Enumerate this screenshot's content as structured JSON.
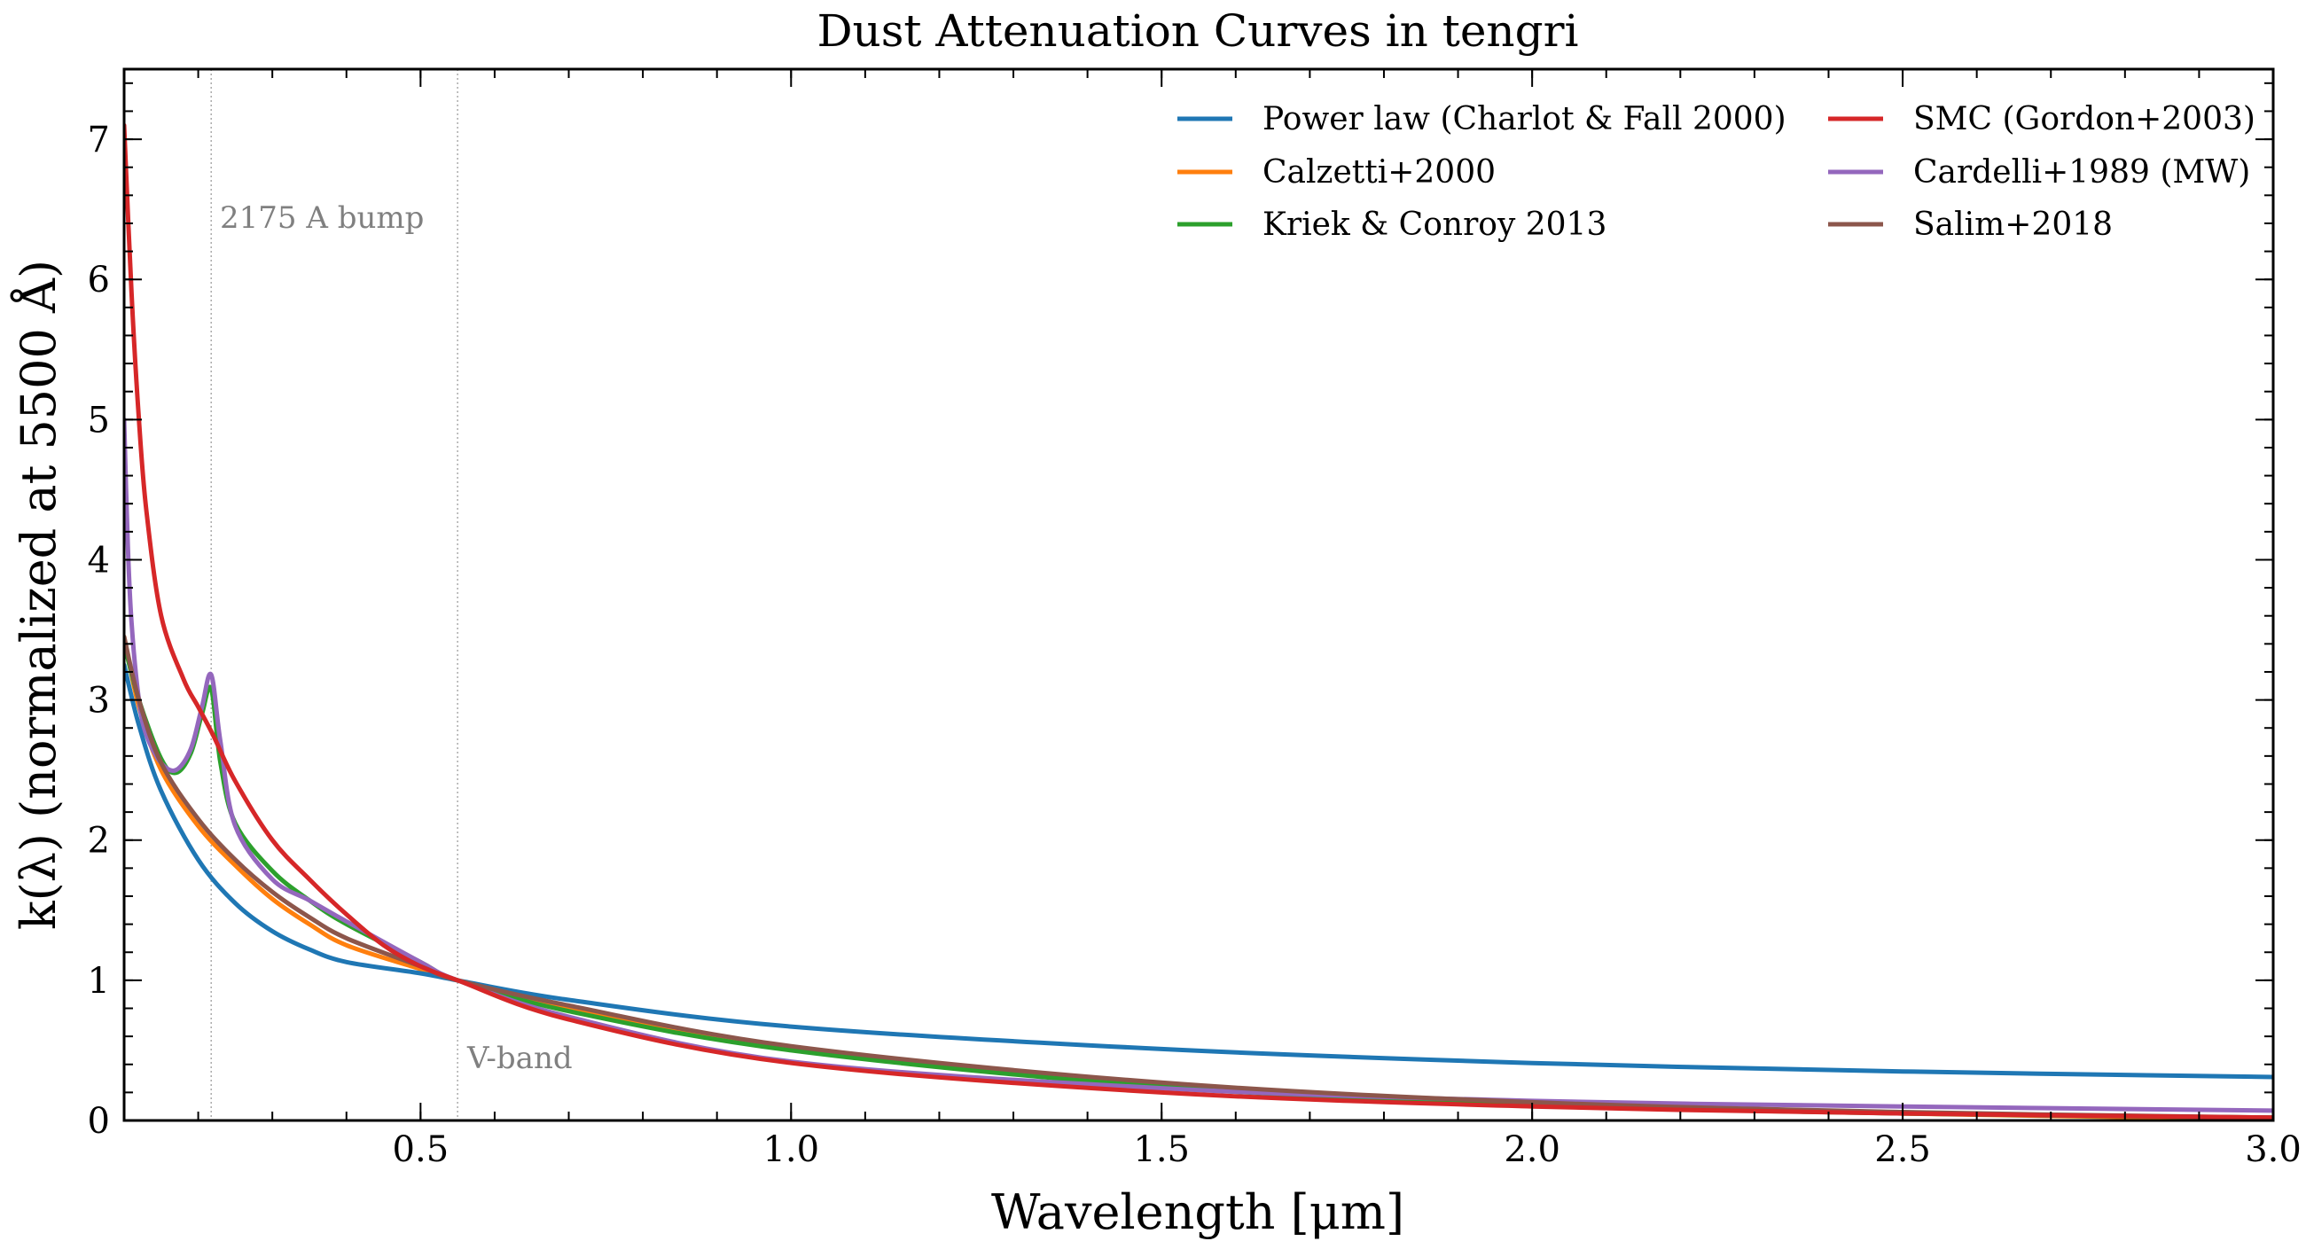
{
  "chart_data": {
    "type": "line",
    "title": "Dust Attenuation Curves in tengri",
    "xlabel": "Wavelength [μm]",
    "ylabel": "k(λ) (normalized at 5500 Å)",
    "xlim": [
      0.1,
      3.0
    ],
    "ylim": [
      0,
      7.5
    ],
    "x_ticks": [
      0.5,
      1.0,
      1.5,
      2.0,
      2.5,
      3.0
    ],
    "x_tick_labels": [
      "0.5",
      "1.0",
      "1.5",
      "2.0",
      "2.5",
      "3.0"
    ],
    "y_ticks": [
      0,
      1,
      2,
      3,
      4,
      5,
      6,
      7
    ],
    "y_tick_labels": [
      "0",
      "1",
      "2",
      "3",
      "4",
      "5",
      "6",
      "7"
    ],
    "grid": false,
    "legend_position": "top-right",
    "annotations": [
      {
        "text": "2175 A bump",
        "x": 0.2175
      },
      {
        "text": "V-band",
        "x": 0.55
      }
    ],
    "series": [
      {
        "name": "Power law (Charlot & Fall 2000)",
        "color": "#1f77b4",
        "x": [
          0.1,
          0.12,
          0.15,
          0.2,
          0.25,
          0.3,
          0.35,
          0.4,
          0.5,
          0.55,
          0.7,
          1.0,
          1.5,
          2.0,
          2.5,
          3.0
        ],
        "y": [
          3.25,
          2.82,
          2.35,
          1.86,
          1.55,
          1.35,
          1.22,
          1.13,
          1.05,
          1.0,
          0.86,
          0.67,
          0.51,
          0.41,
          0.35,
          0.31
        ]
      },
      {
        "name": "Calzetti+2000",
        "color": "#ff7f0e",
        "x": [
          0.1,
          0.12,
          0.15,
          0.2,
          0.25,
          0.3,
          0.35,
          0.4,
          0.5,
          0.55,
          0.7,
          1.0,
          1.5,
          2.0,
          2.5,
          3.0
        ],
        "y": [
          3.45,
          2.95,
          2.5,
          2.1,
          1.82,
          1.58,
          1.4,
          1.25,
          1.08,
          1.0,
          0.8,
          0.51,
          0.25,
          0.12,
          0.05,
          0.01
        ]
      },
      {
        "name": "Kriek & Conroy 2013",
        "color": "#2ca02c",
        "x": [
          0.1,
          0.12,
          0.15,
          0.17,
          0.19,
          0.205,
          0.2175,
          0.23,
          0.25,
          0.3,
          0.35,
          0.4,
          0.5,
          0.55,
          0.7,
          1.0,
          1.5,
          2.0,
          2.5,
          3.0
        ],
        "y": [
          3.4,
          3.0,
          2.58,
          2.48,
          2.62,
          2.9,
          3.08,
          2.55,
          2.12,
          1.78,
          1.57,
          1.4,
          1.13,
          1.0,
          0.78,
          0.5,
          0.24,
          0.11,
          0.05,
          0.02
        ]
      },
      {
        "name": "SMC (Gordon+2003)",
        "color": "#d62728",
        "x": [
          0.1,
          0.11,
          0.12,
          0.13,
          0.15,
          0.18,
          0.2,
          0.22,
          0.25,
          0.3,
          0.35,
          0.4,
          0.45,
          0.5,
          0.55,
          0.7,
          1.0,
          1.5,
          2.0,
          2.5,
          3.0
        ],
        "y": [
          7.1,
          5.9,
          5.0,
          4.35,
          3.6,
          3.15,
          2.95,
          2.75,
          2.42,
          2.0,
          1.72,
          1.47,
          1.25,
          1.1,
          1.0,
          0.72,
          0.41,
          0.2,
          0.1,
          0.05,
          0.02
        ]
      },
      {
        "name": "Cardelli+1989 (MW)",
        "color": "#9467bd",
        "x": [
          0.1,
          0.105,
          0.11,
          0.12,
          0.13,
          0.15,
          0.17,
          0.19,
          0.205,
          0.2175,
          0.23,
          0.25,
          0.3,
          0.35,
          0.4,
          0.5,
          0.55,
          0.7,
          1.0,
          1.5,
          2.0,
          2.5,
          3.0
        ],
        "y": [
          5.0,
          4.1,
          3.55,
          3.0,
          2.75,
          2.55,
          2.5,
          2.65,
          2.95,
          3.18,
          2.7,
          2.1,
          1.72,
          1.57,
          1.42,
          1.13,
          1.0,
          0.74,
          0.42,
          0.23,
          0.14,
          0.1,
          0.07
        ]
      },
      {
        "name": "Salim+2018",
        "color": "#8c564b",
        "x": [
          0.1,
          0.12,
          0.15,
          0.2,
          0.25,
          0.3,
          0.35,
          0.4,
          0.5,
          0.55,
          0.7,
          1.0,
          1.5,
          2.0,
          2.5,
          3.0
        ],
        "y": [
          3.45,
          3.0,
          2.55,
          2.15,
          1.86,
          1.63,
          1.45,
          1.3,
          1.1,
          1.0,
          0.82,
          0.53,
          0.27,
          0.13,
          0.06,
          0.02
        ]
      }
    ]
  }
}
